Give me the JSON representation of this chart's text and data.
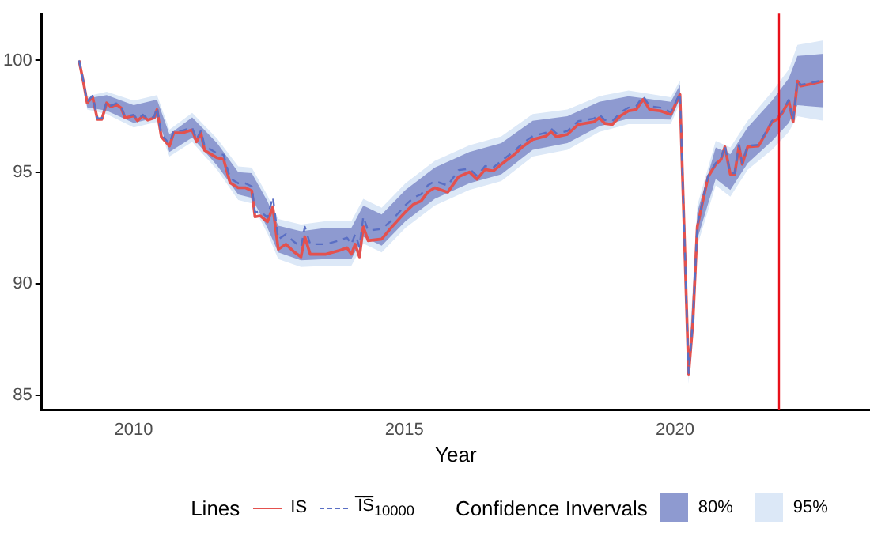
{
  "chart_data": {
    "type": "line",
    "xlabel": "Year",
    "legend": "bottom",
    "legend_title": "Lines",
    "annotations": [
      "Confidence Invervals"
    ],
    "xlim": [
      2008.3,
      2023.6
    ],
    "xticks": [
      2010,
      2015,
      2020
    ],
    "ylim": [
      84.35,
      102.1
    ],
    "yticks": [
      85,
      90,
      95,
      100
    ],
    "ref_lines": [
      {
        "axis": "x",
        "value": 2021.92,
        "color": "#e8101a"
      }
    ],
    "x": [
      2008.99,
      2009.07,
      2009.14,
      2009.24,
      2009.33,
      2009.41,
      2009.5,
      2009.58,
      2009.68,
      2009.77,
      2009.84,
      2010.0,
      2010.07,
      2010.17,
      2010.26,
      2010.38,
      2010.43,
      2010.51,
      2010.66,
      2010.74,
      2010.9,
      2011.08,
      2011.16,
      2011.24,
      2011.31,
      2011.54,
      2011.66,
      2011.78,
      2011.93,
      2012.06,
      2012.18,
      2012.24,
      2012.34,
      2012.47,
      2012.57,
      2012.67,
      2012.81,
      2012.96,
      2013.09,
      2013.16,
      2013.26,
      2013.55,
      2013.79,
      2013.94,
      2014.02,
      2014.09,
      2014.17,
      2014.24,
      2014.33,
      2014.58,
      2014.77,
      2015.02,
      2015.17,
      2015.31,
      2015.43,
      2015.56,
      2015.8,
      2016.0,
      2016.2,
      2016.34,
      2016.49,
      2016.64,
      2016.79,
      2017.03,
      2017.18,
      2017.37,
      2017.62,
      2017.71,
      2017.81,
      2018.01,
      2018.21,
      2018.5,
      2018.6,
      2018.7,
      2018.84,
      2018.99,
      2019.14,
      2019.28,
      2019.41,
      2019.53,
      2019.73,
      2019.92,
      2020.09,
      2020.25,
      2020.33,
      2020.41,
      2020.51,
      2020.61,
      2020.75,
      2020.85,
      2020.92,
      2021.02,
      2021.1,
      2021.18,
      2021.24,
      2021.34,
      2021.54,
      2021.69,
      2021.79,
      2021.88,
      2021.98,
      2022.1,
      2022.18,
      2022.26,
      2022.32,
      2022.47,
      2022.74
    ],
    "series": [
      {
        "name": "95%",
        "type": "line",
        "color": "#dce8f7",
        "x": [
          2009.0,
          2009.14,
          2009.5,
          2010.0,
          2010.43,
          2010.66,
          2011.08,
          2011.54,
          2011.93,
          2012.18,
          2012.47,
          2012.67,
          2013.09,
          2013.55,
          2014.02,
          2014.24,
          2014.58,
          2015.02,
          2015.56,
          2016.2,
          2016.79,
          2017.37,
          2018.01,
          2018.6,
          2019.14,
          2019.92,
          2020.09,
          2020.25,
          2020.41,
          2020.75,
          2021.02,
          2021.34,
          2021.79,
          2022.1,
          2022.26,
          2022.74
        ],
        "values": [
          null,
          null,
          null,
          null,
          null,
          null,
          null,
          null,
          null,
          null,
          null,
          null,
          null,
          null,
          null,
          null,
          null,
          null,
          null,
          null,
          null,
          null,
          null,
          null,
          null,
          null,
          null,
          null,
          null,
          null,
          null,
          null,
          null,
          null,
          null,
          null
        ],
        "upper": [
          100.1,
          98.4,
          98.6,
          98.2,
          98.45,
          96.9,
          97.65,
          96.5,
          95.25,
          95.2,
          93.95,
          92.9,
          92.65,
          92.8,
          92.8,
          93.8,
          93.4,
          94.5,
          95.5,
          96.2,
          96.6,
          97.6,
          97.8,
          98.4,
          98.65,
          98.35,
          99.1,
          86.5,
          93.5,
          96.4,
          96.1,
          97.3,
          98.6,
          99.6,
          100.7,
          100.9
        ],
        "lower": [
          99.9,
          97.8,
          97.6,
          97.0,
          97.25,
          95.7,
          96.35,
          95.1,
          93.75,
          93.6,
          92.25,
          91.1,
          90.75,
          90.8,
          90.8,
          91.8,
          91.4,
          92.5,
          93.5,
          94.2,
          94.6,
          95.7,
          96.0,
          96.8,
          97.15,
          97.15,
          98.1,
          85.5,
          91.7,
          94.4,
          93.9,
          95.1,
          96.0,
          96.8,
          97.5,
          97.3
        ]
      },
      {
        "name": "80%",
        "type": "line",
        "color": "#8e9ad0",
        "x": [
          2009.0,
          2009.14,
          2009.5,
          2010.0,
          2010.43,
          2010.66,
          2011.08,
          2011.54,
          2011.93,
          2012.18,
          2012.47,
          2012.67,
          2013.09,
          2013.55,
          2014.02,
          2014.24,
          2014.58,
          2015.02,
          2015.56,
          2016.2,
          2016.79,
          2017.37,
          2018.01,
          2018.6,
          2019.14,
          2019.92,
          2020.09,
          2020.25,
          2020.41,
          2020.75,
          2021.02,
          2021.34,
          2021.79,
          2022.1,
          2022.26,
          2022.74
        ],
        "values": [
          null,
          null,
          null,
          null,
          null,
          null,
          null,
          null,
          null,
          null,
          null,
          null,
          null,
          null,
          null,
          null,
          null,
          null,
          null,
          null,
          null,
          null,
          null,
          null,
          null,
          null,
          null,
          null,
          null,
          null,
          null,
          null,
          null,
          null,
          null,
          null
        ],
        "upper": [
          100.05,
          98.3,
          98.45,
          98.0,
          98.25,
          96.7,
          97.45,
          96.3,
          95.0,
          94.95,
          93.7,
          92.6,
          92.35,
          92.5,
          92.5,
          93.5,
          93.1,
          94.2,
          95.2,
          95.9,
          96.3,
          97.3,
          97.5,
          98.15,
          98.4,
          98.15,
          98.9,
          86.2,
          93.2,
          96.1,
          95.8,
          97.0,
          98.2,
          99.2,
          100.2,
          100.3
        ],
        "lower": [
          99.95,
          97.9,
          97.75,
          97.2,
          97.45,
          95.9,
          96.55,
          95.3,
          94.0,
          93.85,
          92.5,
          91.4,
          91.05,
          91.1,
          91.1,
          92.1,
          91.7,
          92.8,
          93.8,
          94.5,
          94.9,
          96.0,
          96.3,
          97.05,
          97.4,
          97.35,
          98.3,
          85.8,
          92.0,
          94.7,
          94.2,
          95.4,
          96.4,
          97.2,
          98.0,
          97.9
        ]
      },
      {
        "name": "IS",
        "color": "#e4514e",
        "values": [
          100.0,
          99.04,
          98.1,
          98.37,
          97.36,
          97.36,
          98.1,
          97.92,
          98.03,
          97.87,
          97.43,
          97.52,
          97.3,
          97.52,
          97.33,
          97.43,
          97.8,
          96.58,
          96.17,
          96.76,
          96.76,
          96.89,
          96.36,
          96.76,
          95.97,
          95.64,
          95.57,
          94.52,
          94.3,
          94.3,
          94.16,
          93.0,
          93.04,
          92.77,
          93.44,
          91.54,
          91.77,
          91.43,
          91.2,
          92.1,
          91.32,
          91.32,
          91.48,
          91.61,
          91.32,
          91.77,
          91.2,
          92.55,
          91.93,
          92.0,
          92.55,
          93.22,
          93.56,
          93.71,
          94.1,
          94.3,
          94.1,
          94.79,
          95.0,
          94.68,
          95.12,
          95.05,
          95.35,
          95.79,
          96.13,
          96.46,
          96.62,
          96.8,
          96.58,
          96.69,
          97.13,
          97.25,
          97.43,
          97.18,
          97.13,
          97.52,
          97.74,
          97.8,
          98.26,
          97.8,
          97.74,
          97.58,
          98.48,
          85.95,
          88.3,
          92.55,
          93.67,
          94.79,
          95.35,
          95.57,
          96.13,
          94.9,
          94.9,
          96.17,
          95.35,
          96.13,
          96.17,
          96.8,
          97.25,
          97.36,
          97.65,
          98.19,
          97.25,
          99.08,
          98.86,
          98.93,
          99.08
        ]
      },
      {
        "name": "I̅S̅$_{10000}$",
        "color": "#5a6fc4",
        "line_style": "dashed",
        "values": [
          100.0,
          99.09,
          98.15,
          98.42,
          97.41,
          97.41,
          98.15,
          97.97,
          98.08,
          97.92,
          97.48,
          97.57,
          97.35,
          97.57,
          97.38,
          97.48,
          97.9,
          96.68,
          96.27,
          96.86,
          96.86,
          96.99,
          96.46,
          96.86,
          96.17,
          95.84,
          95.77,
          94.72,
          94.5,
          94.5,
          94.36,
          93.2,
          93.24,
          92.97,
          93.89,
          91.99,
          92.22,
          91.88,
          91.65,
          92.55,
          91.77,
          91.77,
          91.93,
          92.06,
          91.77,
          92.22,
          91.65,
          93.0,
          92.38,
          92.45,
          92.85,
          93.52,
          93.86,
          94.01,
          94.4,
          94.6,
          94.4,
          95.09,
          95.15,
          94.83,
          95.27,
          95.2,
          95.5,
          95.94,
          96.28,
          96.61,
          96.77,
          96.95,
          96.73,
          96.84,
          97.28,
          97.4,
          97.58,
          97.33,
          97.28,
          97.67,
          97.89,
          97.95,
          98.41,
          97.95,
          97.89,
          97.68,
          98.53,
          86.0,
          88.35,
          92.6,
          93.72,
          94.84,
          95.4,
          95.62,
          96.18,
          94.95,
          94.95,
          96.22,
          95.4,
          96.18,
          96.22,
          96.85,
          97.3,
          97.41,
          97.7,
          98.24,
          97.3,
          99.13,
          98.91,
          98.98,
          99.13
        ]
      }
    ]
  }
}
